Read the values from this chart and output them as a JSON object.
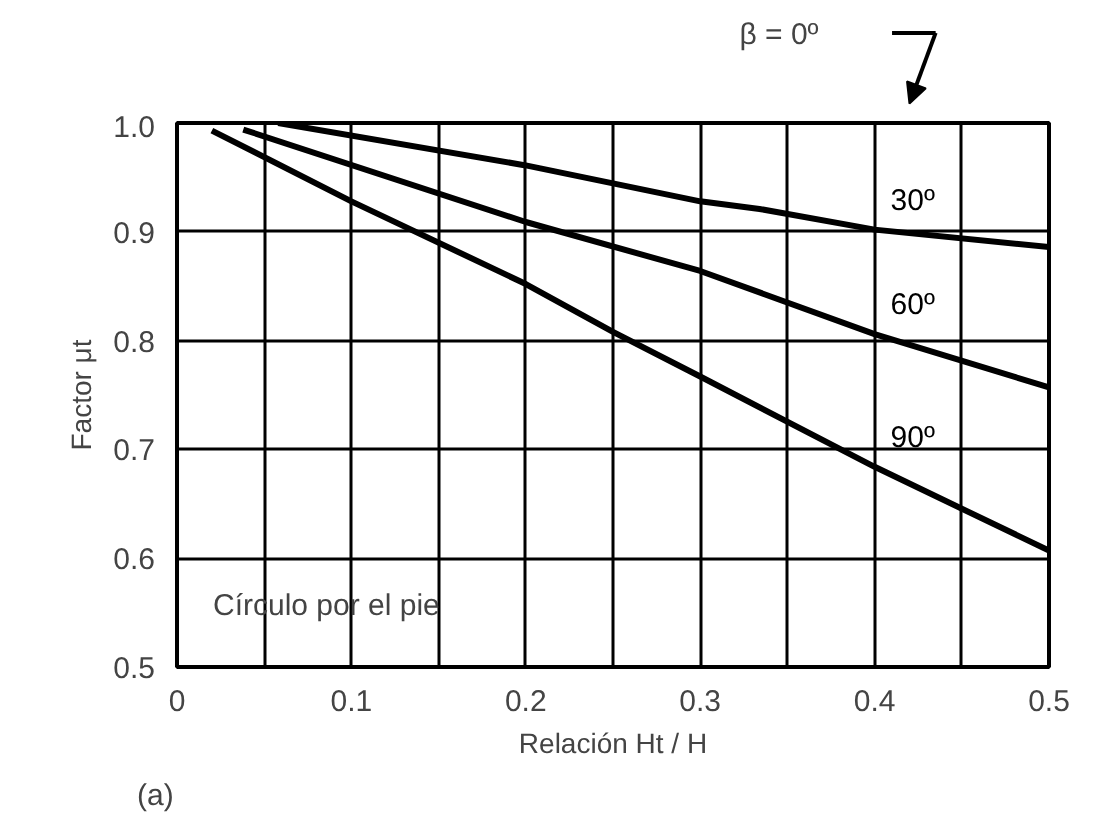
{
  "chart_data": {
    "type": "line",
    "xlabel": "Relación Ht / H",
    "ylabel": "Factor μt",
    "xlim": [
      0,
      0.5
    ],
    "ylim": [
      0.5,
      1.0
    ],
    "xticks": [
      0,
      {
        "value": 0.05,
        "label": null
      },
      0.1,
      {
        "value": 0.15,
        "label": null
      },
      0.2,
      {
        "value": 0.25,
        "label": null
      },
      0.3,
      {
        "value": 0.35,
        "label": null
      },
      0.4,
      {
        "value": 0.45,
        "label": null
      },
      0.5
    ],
    "yticks": [
      {
        "value": 0.5,
        "label": "0.5"
      },
      0.6,
      0.7,
      0.8,
      0.9,
      {
        "value": 1.0,
        "label": "1.0"
      }
    ],
    "grid": true,
    "legend": false,
    "marker": "none",
    "line_style": "solid",
    "series": [
      {
        "name": "30º",
        "color": "#000000",
        "x": [
          0.058,
          0.2,
          0.3,
          0.334,
          0.4,
          0.5
        ],
        "values": [
          1.0,
          0.961,
          0.928,
          0.921,
          0.902,
          0.886
        ]
      },
      {
        "name": "60º",
        "color": "#000000",
        "x": [
          0.038,
          0.2,
          0.3,
          0.4,
          0.5
        ],
        "values": [
          0.994,
          0.909,
          0.864,
          0.806,
          0.757
        ]
      },
      {
        "name": "90º",
        "color": "#000000",
        "x": [
          0.02,
          0.1,
          0.2,
          0.25,
          0.3,
          0.4,
          0.5
        ],
        "values": [
          0.993,
          0.928,
          0.852,
          0.808,
          0.767,
          0.684,
          0.607
        ]
      }
    ],
    "annotations": [
      "β = 0º",
      "Círculo por el pie",
      "(a)"
    ]
  }
}
